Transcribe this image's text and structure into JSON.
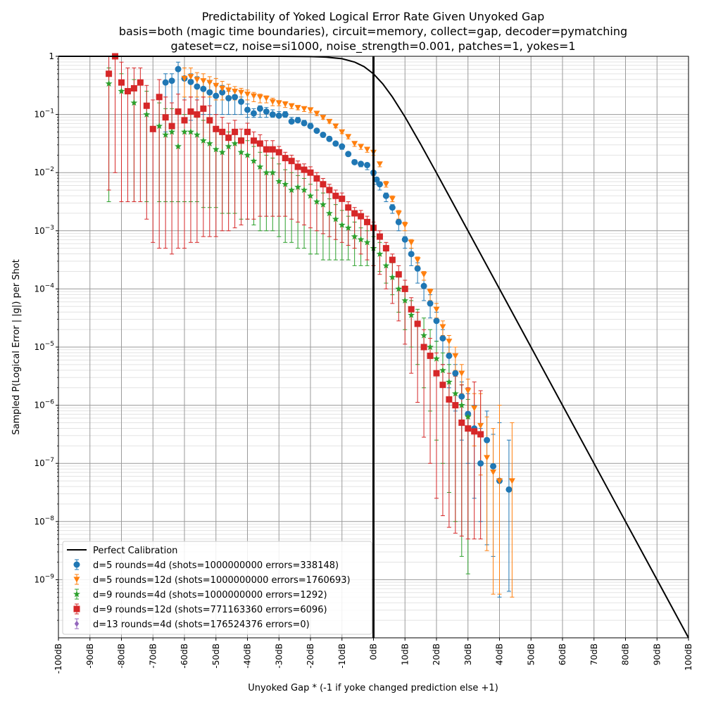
{
  "chart_data": {
    "type": "scatter",
    "title_lines": [
      "Predictability of Yoked Logical Error Rate Given Unyoked Gap",
      "basis=both (magic time boundaries), circuit=memory, collect=gap, decoder=pymatching",
      "gateset=cz, noise=si1000, noise_strength=0.001, patches=1, yokes=1"
    ],
    "xlabel": "Unyoked Gap * (-1 if yoke changed prediction else +1)",
    "ylabel": "Sampled P(Logical Error | |g|) per Shot",
    "xlim": [
      -100,
      100
    ],
    "ylim_log10": [
      -10,
      0
    ],
    "log_y": true,
    "grid": true,
    "x_ticks": [
      -100,
      -90,
      -80,
      -70,
      -60,
      -50,
      -40,
      -30,
      -20,
      -10,
      0,
      10,
      20,
      30,
      40,
      50,
      60,
      70,
      80,
      90,
      100
    ],
    "x_tick_labels": [
      "-100dB",
      "-90dB",
      "-80dB",
      "-70dB",
      "-60dB",
      "-50dB",
      "-40dB",
      "-30dB",
      "-20dB",
      "-10dB",
      "0dB",
      "10dB",
      "20dB",
      "30dB",
      "40dB",
      "50dB",
      "60dB",
      "70dB",
      "80dB",
      "90dB",
      "100dB"
    ],
    "y_ticks_log10": [
      0,
      -1,
      -2,
      -3,
      -4,
      -5,
      -6,
      -7,
      -8,
      -9
    ],
    "y_tick_labels": [
      {
        "base": "1",
        "exp": "0"
      },
      {
        "base": "10",
        "exp": "−1"
      },
      {
        "base": "10",
        "exp": "−2"
      },
      {
        "base": "10",
        "exp": "−3"
      },
      {
        "base": "10",
        "exp": "−4"
      },
      {
        "base": "10",
        "exp": "−5"
      },
      {
        "base": "10",
        "exp": "−6"
      },
      {
        "base": "10",
        "exp": "−7"
      },
      {
        "base": "10",
        "exp": "−8"
      },
      {
        "base": "10",
        "exp": "−9"
      }
    ],
    "vertical_line_x": 0,
    "legend_position": "lower-left",
    "reference_line": {
      "name": "Perfect Calibration",
      "color": "#000000",
      "x": [
        -100,
        -40,
        -30,
        -20,
        -15,
        -10,
        -6,
        -3,
        0,
        3,
        6,
        10,
        15,
        20,
        30,
        40,
        50,
        60,
        70,
        80,
        90,
        100
      ],
      "log10_y": [
        0,
        -4.35e-05,
        -0.000434,
        -0.00432,
        -0.0135,
        -0.0414,
        -0.0985,
        -0.1765,
        -0.30103,
        -0.4765,
        -0.6985,
        -1.0414,
        -1.5135,
        -2.00432,
        -3.000434,
        -4.0000435,
        -5,
        -6,
        -7,
        -8,
        -9,
        -10
      ]
    },
    "series": [
      {
        "name": "d=5 rounds=4d (shots=1000000000 errors=338148)",
        "color": "#1f77b4",
        "marker": "circle",
        "x": [
          -66,
          -64,
          -62,
          -60,
          -58,
          -56,
          -54,
          -52,
          -50,
          -48,
          -46,
          -44,
          -42,
          -40,
          -38,
          -36,
          -34,
          -32,
          -30,
          -28,
          -26,
          -24,
          -22,
          -20,
          -18,
          -16,
          -14,
          -12,
          -10,
          -8,
          -6,
          -4,
          -2,
          0,
          1,
          2,
          4,
          6,
          8,
          10,
          12,
          14,
          16,
          18,
          20,
          22,
          24,
          26,
          28,
          30,
          32,
          34,
          36,
          38,
          40,
          43
        ],
        "log10_y": [
          -0.45,
          -0.42,
          -0.22,
          -0.38,
          -0.44,
          -0.52,
          -0.56,
          -0.62,
          -0.68,
          -0.62,
          -0.72,
          -0.7,
          -0.78,
          -0.92,
          -0.98,
          -0.9,
          -0.95,
          -1.0,
          -1.02,
          -1.0,
          -1.12,
          -1.1,
          -1.15,
          -1.2,
          -1.28,
          -1.35,
          -1.42,
          -1.5,
          -1.55,
          -1.68,
          -1.82,
          -1.85,
          -1.87,
          -2.0,
          -2.12,
          -2.2,
          -2.4,
          -2.6,
          -2.85,
          -3.15,
          -3.4,
          -3.65,
          -3.95,
          -4.25,
          -4.55,
          -4.85,
          -5.15,
          -5.45,
          -5.85,
          -6.15,
          -6.4,
          -7.0,
          -6.6,
          -7.05,
          -7.3,
          -7.45
        ],
        "err_low_log10": [
          -1.3,
          -1.2,
          -1.0,
          -1.1,
          -1.1,
          -1.0,
          -1.0,
          -1.0,
          -1.0,
          -1.0,
          -1.0,
          -1.0,
          -1.0,
          -1.05,
          -1.05,
          -1.05,
          -1.05,
          -1.05,
          -1.05,
          -1.05,
          -1.1,
          -1.1,
          -1.15,
          -1.2,
          -1.3,
          -1.35,
          -1.45,
          -1.5,
          -1.6,
          -1.7,
          -1.85,
          -1.9,
          -1.95,
          -2.05,
          -2.2,
          -2.3,
          -2.5,
          -2.7,
          -3.0,
          -3.3,
          -3.6,
          -3.9,
          -4.2,
          -4.5,
          -4.9,
          -5.3,
          -5.7,
          -6.1,
          -6.6,
          -7.0,
          -7.6,
          -8.0,
          -8.4,
          -8.6,
          -9.3,
          -9.2
        ],
        "err_high_log10": [
          -0.3,
          -0.3,
          -0.1,
          -0.2,
          -0.3,
          -0.35,
          -0.4,
          -0.45,
          -0.5,
          -0.5,
          -0.6,
          -0.6,
          -0.7,
          -0.82,
          -0.9,
          -0.85,
          -0.88,
          -0.92,
          -0.95,
          -0.95,
          -1.05,
          -1.05,
          -1.1,
          -1.15,
          -1.25,
          -1.32,
          -1.38,
          -1.47,
          -1.52,
          -1.65,
          -1.78,
          -1.82,
          -1.85,
          -1.97,
          -2.08,
          -2.16,
          -2.35,
          -2.55,
          -2.8,
          -3.1,
          -3.3,
          -3.55,
          -3.85,
          -4.1,
          -4.4,
          -4.7,
          -5.0,
          -5.3,
          -5.6,
          -5.8,
          -6.0,
          -6.4,
          -6.1,
          -6.5,
          -6.3,
          -6.6
        ]
      },
      {
        "name": "d=5 rounds=12d (shots=1000000000 errors=1760693)",
        "color": "#ff7f0e",
        "marker": "triangle-down",
        "x": [
          -60,
          -58,
          -56,
          -54,
          -52,
          -50,
          -48,
          -46,
          -44,
          -42,
          -40,
          -38,
          -36,
          -34,
          -32,
          -30,
          -28,
          -26,
          -24,
          -22,
          -20,
          -18,
          -16,
          -14,
          -12,
          -10,
          -8,
          -6,
          -4,
          -2,
          0,
          2,
          4,
          6,
          8,
          10,
          12,
          14,
          16,
          18,
          20,
          22,
          24,
          26,
          28,
          30,
          32,
          34,
          36,
          38,
          40,
          44
        ],
        "log10_y": [
          -0.38,
          -0.35,
          -0.4,
          -0.42,
          -0.45,
          -0.5,
          -0.55,
          -0.58,
          -0.6,
          -0.62,
          -0.65,
          -0.68,
          -0.7,
          -0.72,
          -0.78,
          -0.8,
          -0.82,
          -0.85,
          -0.88,
          -0.9,
          -0.92,
          -0.98,
          -1.05,
          -1.12,
          -1.2,
          -1.3,
          -1.38,
          -1.5,
          -1.55,
          -1.6,
          -1.65,
          -1.85,
          -2.2,
          -2.45,
          -2.7,
          -2.9,
          -3.2,
          -3.5,
          -3.75,
          -4.05,
          -4.35,
          -4.65,
          -4.9,
          -5.15,
          -5.45,
          -5.75,
          -6.05,
          -6.35,
          -6.9,
          -7.15,
          -7.3,
          -7.3
        ],
        "err_low_log10": [
          -0.7,
          -0.7,
          -0.7,
          -0.7,
          -0.7,
          -0.75,
          -0.75,
          -0.75,
          -0.75,
          -0.75,
          -0.75,
          -0.78,
          -0.8,
          -0.8,
          -0.85,
          -0.85,
          -0.88,
          -0.9,
          -0.92,
          -0.95,
          -0.97,
          -1.02,
          -1.08,
          -1.15,
          -1.23,
          -1.33,
          -1.42,
          -1.55,
          -1.6,
          -1.65,
          -1.7,
          -1.9,
          -2.25,
          -2.5,
          -2.8,
          -3.0,
          -3.3,
          -3.6,
          -3.85,
          -4.2,
          -4.5,
          -4.8,
          -5.1,
          -5.4,
          -5.8,
          -6.2,
          -6.7,
          -7.2,
          -8.5,
          -9.25,
          -9.25,
          -9.3
        ],
        "err_high_log10": [
          -0.2,
          -0.2,
          -0.28,
          -0.3,
          -0.35,
          -0.38,
          -0.43,
          -0.48,
          -0.52,
          -0.55,
          -0.58,
          -0.62,
          -0.65,
          -0.68,
          -0.72,
          -0.76,
          -0.78,
          -0.82,
          -0.85,
          -0.87,
          -0.89,
          -0.95,
          -1.02,
          -1.1,
          -1.17,
          -1.27,
          -1.35,
          -1.47,
          -1.52,
          -1.57,
          -1.62,
          -1.82,
          -2.15,
          -2.4,
          -2.65,
          -2.85,
          -3.15,
          -3.45,
          -3.7,
          -4.0,
          -4.25,
          -4.55,
          -4.8,
          -5.0,
          -5.3,
          -5.55,
          -5.8,
          -5.8,
          -6.2,
          -6.4,
          -6.0,
          -6.3
        ]
      },
      {
        "name": "d=9 rounds=4d (shots=1000000000 errors=1292)",
        "color": "#2ca02c",
        "marker": "star",
        "x": [
          -84,
          -80,
          -76,
          -72,
          -68,
          -66,
          -64,
          -62,
          -60,
          -58,
          -56,
          -54,
          -52,
          -50,
          -48,
          -46,
          -44,
          -42,
          -40,
          -38,
          -36,
          -34,
          -32,
          -30,
          -28,
          -26,
          -24,
          -22,
          -20,
          -18,
          -16,
          -14,
          -12,
          -10,
          -8,
          -6,
          -4,
          -2,
          0,
          2,
          4,
          6,
          8,
          10,
          12,
          14,
          16,
          18,
          20,
          22,
          24,
          26,
          28,
          30
        ],
        "log10_y": [
          -0.47,
          -0.6,
          -0.8,
          -1.0,
          -1.2,
          -1.35,
          -1.3,
          -1.55,
          -1.3,
          -1.3,
          -1.35,
          -1.45,
          -1.5,
          -1.6,
          -1.65,
          -1.55,
          -1.5,
          -1.65,
          -1.7,
          -1.8,
          -1.9,
          -2.0,
          -2.0,
          -2.15,
          -2.2,
          -2.3,
          -2.25,
          -2.3,
          -2.4,
          -2.5,
          -2.55,
          -2.7,
          -2.8,
          -2.9,
          -2.95,
          -3.1,
          -3.15,
          -3.2,
          -3.3,
          -3.4,
          -3.6,
          -3.8,
          -4.0,
          -4.2,
          -4.45,
          -4.6,
          -4.8,
          -5.0,
          -5.2,
          -5.4,
          -5.6,
          -5.8,
          -6.0,
          -6.2
        ],
        "err_low_log10": [
          -2.5,
          -2.5,
          -2.5,
          -2.5,
          -2.5,
          -2.5,
          -2.5,
          -2.5,
          -2.5,
          -2.5,
          -2.5,
          -2.6,
          -2.6,
          -2.6,
          -2.7,
          -2.7,
          -2.7,
          -2.8,
          -2.8,
          -2.9,
          -3.0,
          -3.0,
          -3.0,
          -3.1,
          -3.2,
          -3.2,
          -3.3,
          -3.3,
          -3.4,
          -3.4,
          -3.5,
          -3.5,
          -3.5,
          -3.5,
          -3.5,
          -3.6,
          -3.6,
          -3.6,
          -3.6,
          -3.7,
          -3.9,
          -4.1,
          -4.4,
          -4.7,
          -5.0,
          -5.3,
          -5.7,
          -6.1,
          -6.6,
          -7.0,
          -7.5,
          -8.0,
          -8.6,
          -8.9
        ],
        "err_high_log10": [
          -0.2,
          -0.3,
          -0.4,
          -0.6,
          -0.8,
          -0.9,
          -0.9,
          -1.0,
          -1.0,
          -1.0,
          -1.05,
          -1.1,
          -1.15,
          -1.25,
          -1.3,
          -1.3,
          -1.3,
          -1.4,
          -1.45,
          -1.55,
          -1.65,
          -1.7,
          -1.75,
          -1.85,
          -1.95,
          -2.0,
          -2.05,
          -2.1,
          -2.2,
          -2.3,
          -2.35,
          -2.45,
          -2.55,
          -2.65,
          -2.75,
          -2.85,
          -2.95,
          -3.0,
          -3.1,
          -3.2,
          -3.35,
          -3.55,
          -3.75,
          -3.95,
          -4.2,
          -4.35,
          -4.5,
          -4.7,
          -4.9,
          -5.1,
          -5.3,
          -5.5,
          -5.65,
          -5.9
        ]
      },
      {
        "name": "d=9 rounds=12d (shots=771163360 errors=6096)",
        "color": "#d62728",
        "marker": "square",
        "x": [
          -84,
          -82,
          -80,
          -78,
          -76,
          -74,
          -72,
          -70,
          -68,
          -66,
          -64,
          -62,
          -60,
          -58,
          -56,
          -54,
          -52,
          -50,
          -48,
          -46,
          -44,
          -42,
          -40,
          -38,
          -36,
          -34,
          -32,
          -30,
          -28,
          -26,
          -24,
          -22,
          -20,
          -18,
          -16,
          -14,
          -12,
          -10,
          -8,
          -6,
          -4,
          -2,
          0,
          2,
          4,
          6,
          8,
          10,
          12,
          14,
          16,
          18,
          20,
          22,
          24,
          26,
          28,
          30,
          32,
          34
        ],
        "log10_y": [
          -0.3,
          0,
          -0.45,
          -0.6,
          -0.55,
          -0.45,
          -0.85,
          -1.25,
          -0.7,
          -1.05,
          -1.2,
          -0.95,
          -1.1,
          -0.95,
          -1.0,
          -0.9,
          -1.1,
          -1.25,
          -1.3,
          -1.4,
          -1.3,
          -1.45,
          -1.3,
          -1.45,
          -1.5,
          -1.6,
          -1.6,
          -1.65,
          -1.75,
          -1.8,
          -1.9,
          -1.95,
          -2.0,
          -2.1,
          -2.2,
          -2.3,
          -2.4,
          -2.45,
          -2.6,
          -2.7,
          -2.75,
          -2.85,
          -2.95,
          -3.1,
          -3.3,
          -3.5,
          -3.75,
          -4.0,
          -4.35,
          -4.6,
          -5.0,
          -5.15,
          -5.45,
          -5.65,
          -5.9,
          -6.0,
          -6.3,
          -6.4,
          -6.45,
          -6.5
        ],
        "err_low_log10": [
          -2.3,
          -2.0,
          -2.5,
          -2.5,
          -2.5,
          -2.5,
          -2.8,
          -3.2,
          -3.3,
          -3.3,
          -3.4,
          -3.3,
          -3.3,
          -3.2,
          -3.2,
          -3.1,
          -3.1,
          -3.1,
          -3.0,
          -3.0,
          -2.95,
          -2.9,
          -2.8,
          -2.8,
          -2.75,
          -2.75,
          -2.75,
          -2.75,
          -2.75,
          -2.8,
          -2.85,
          -2.9,
          -2.95,
          -3.0,
          -3.05,
          -3.1,
          -3.15,
          -3.2,
          -3.25,
          -3.3,
          -3.4,
          -3.5,
          -3.6,
          -3.75,
          -4.0,
          -4.25,
          -4.55,
          -4.95,
          -5.45,
          -5.95,
          -6.55,
          -7.0,
          -7.6,
          -7.9,
          -8.1,
          -8.2,
          -8.25,
          -8.3,
          -8.3,
          -8.3
        ],
        "err_high_log10": [
          0,
          0,
          -0.1,
          -0.2,
          -0.2,
          -0.2,
          -0.5,
          -0.75,
          -0.4,
          -0.7,
          -0.8,
          -0.65,
          -0.75,
          -0.7,
          -0.75,
          -0.7,
          -0.85,
          -1.0,
          -1.05,
          -1.15,
          -1.1,
          -1.25,
          -1.15,
          -1.3,
          -1.35,
          -1.45,
          -1.45,
          -1.55,
          -1.65,
          -1.7,
          -1.8,
          -1.85,
          -1.9,
          -2.0,
          -2.1,
          -2.2,
          -2.3,
          -2.35,
          -2.5,
          -2.6,
          -2.65,
          -2.75,
          -2.85,
          -3.0,
          -3.2,
          -3.4,
          -3.6,
          -3.85,
          -4.15,
          -4.4,
          -4.7,
          -4.85,
          -5.1,
          -5.3,
          -5.45,
          -5.5,
          -5.65,
          -5.7,
          -5.6,
          -5.75
        ]
      },
      {
        "name": "d=13 rounds=4d (shots=176524376 errors=0)",
        "color": "#9467bd",
        "marker": "diamond",
        "x": [],
        "log10_y": [],
        "err_low_log10": [],
        "err_high_log10": []
      }
    ]
  }
}
